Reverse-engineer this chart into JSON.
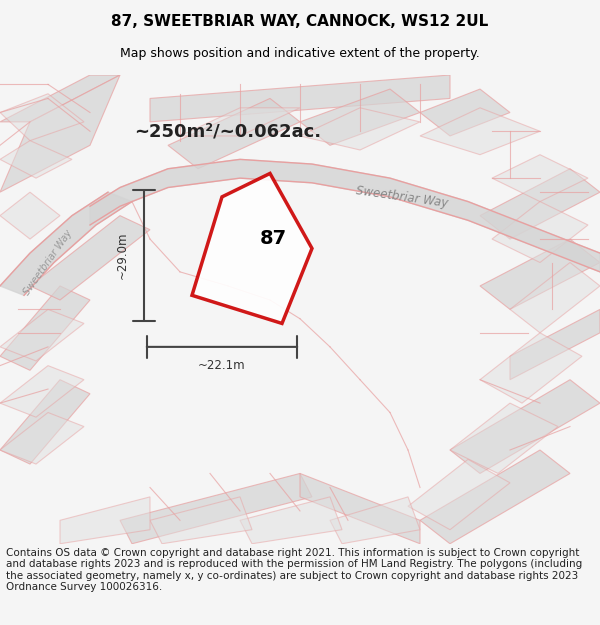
{
  "title": "87, SWEETBRIAR WAY, CANNOCK, WS12 2UL",
  "subtitle": "Map shows position and indicative extent of the property.",
  "area_text": "~250m²/~0.062ac.",
  "number_label": "87",
  "dim_width": "~22.1m",
  "dim_height": "~29.0m",
  "copyright_text": "Contains OS data © Crown copyright and database right 2021. This information is subject to Crown copyright and database rights 2023 and is reproduced with the permission of HM Land Registry. The polygons (including the associated geometry, namely x, y co-ordinates) are subject to Crown copyright and database rights 2023 Ordnance Survey 100026316.",
  "bg_color": "#f0eeee",
  "map_bg": "#e8e8e8",
  "road_color": "#d0d0d0",
  "plot_outline_color": "#cc0000",
  "plot_fill_color": "#ffffff",
  "plot_alpha": 0.85,
  "street_label_1": "Sweetbriar Way",
  "street_label_2": "Sweetbriar Way",
  "title_fontsize": 11,
  "subtitle_fontsize": 9,
  "label_fontsize": 14,
  "copyright_fontsize": 7.5
}
